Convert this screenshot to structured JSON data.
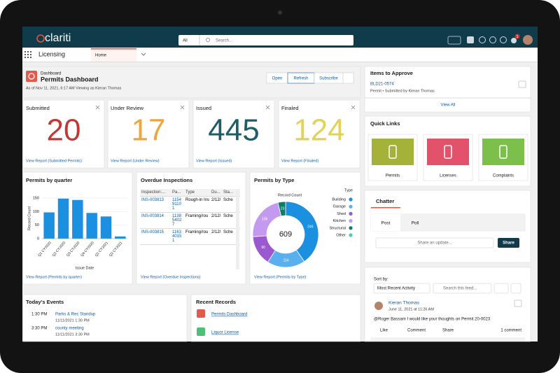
{
  "header": {
    "logo": "clariti",
    "search_scope": "All",
    "search_placeholder": "Search...",
    "notification_badge": "1"
  },
  "nav": {
    "app": "Licensing",
    "tab": "Home"
  },
  "dashboard": {
    "label": "Dashboard",
    "title": "Permits Dashboard",
    "as_of": "As of Nov 11, 2021, 6:17 AM Viewing as Kieran Thomas",
    "buttons": [
      "Open",
      "Refresh",
      "Subscribe"
    ]
  },
  "metrics": [
    {
      "title": "Submitted",
      "value": 20,
      "color": "#c23934",
      "link": "View Report (Submitted Permits)"
    },
    {
      "title": "Under Review",
      "value": 17,
      "color": "#f0a53a",
      "link": "View Report (Under Review)"
    },
    {
      "title": "Issued",
      "value": 445,
      "color": "#1d5c68",
      "link": "View Report (Issued)"
    },
    {
      "title": "Finaled",
      "value": 124,
      "color": "#e2d25a",
      "link": "View Report (Finaled)"
    }
  ],
  "chart_data": [
    {
      "type": "bar",
      "title": "Permits by quarter",
      "x_label": "Issue Date",
      "y_label": "Record Count",
      "categories": [
        "Q1 CY2020",
        "Q2 CY2020",
        "Q3 CY2020",
        "Q4 CY2020",
        "Q1 CY2021",
        "Q2 CY2021"
      ],
      "values": [
        97,
        148,
        143,
        95,
        82,
        8
      ],
      "color": "#1b8fe0",
      "ylim": [
        0,
        150
      ],
      "yticks": [
        0,
        50,
        100,
        150
      ],
      "grid": true,
      "link": "View Report (Permits by quarter)"
    },
    {
      "type": "pie",
      "title": "Permits by Type",
      "value_label": "Record Count",
      "legend_title": "Type",
      "total": 609,
      "categories": [
        "Building",
        "Garage",
        "Shed",
        "Kitchen",
        "Structural",
        "Other"
      ],
      "values": [
        246,
        114,
        90,
        136,
        23,
        0
      ],
      "colors": [
        "#1b8fe0",
        "#5ab0ef",
        "#9b59d0",
        "#c39af0",
        "#0b7d68",
        "#57c5b6"
      ],
      "link": "View Report (Permits by Type)"
    }
  ],
  "inspections": {
    "title": "Overdue Inspections",
    "columns": [
      "Inspection:...",
      "Pa...",
      "Type",
      "Du...",
      "Sta..."
    ],
    "rows": [
      [
        "INS-003813",
        "115491101",
        "Rough-in Ins",
        "2/12/",
        "Sche"
      ],
      [
        "INS-003814",
        "113854027",
        "Framing/rou",
        "2/12/",
        "Sche"
      ],
      [
        "INS-003815",
        "116340151",
        "Framing/rou",
        "2/12/",
        "Sche"
      ]
    ],
    "link": "View Report (Overdue Inspections)"
  },
  "approvals": {
    "title": "Items to Approve",
    "item": "BLD21-0574",
    "detail": "Permit • Submitted by Kieran Thomas",
    "link": "View All"
  },
  "quick_links": {
    "title": "Quick Links",
    "items": [
      "Permits",
      "Licenses",
      "Complaints"
    ]
  },
  "chatter": {
    "title": "Chatter",
    "tabs": [
      "Post",
      "Poll"
    ],
    "placeholder": "Share an update...",
    "button": "Share"
  },
  "feed": {
    "sort_label": "Sort by:",
    "sort": "Most Recent Activity",
    "search": "Search this feed...",
    "author": "Kieran Thomas",
    "date": "June 11, 2021 at 11:26 AM",
    "text": "@Roger Bassam I would like your thoughts on Permit 20-0023",
    "actions": [
      "Like",
      "Comment",
      "Share"
    ],
    "comments": "1 comment"
  },
  "events": {
    "title": "Today's Events",
    "items": [
      {
        "time": "1:30 PM",
        "name": "Parks & Rec Standup",
        "date": "11/11/2021 1:30 PM"
      },
      {
        "time": "3:30 PM",
        "name": "county meeting",
        "date": "11/11/2021 3:30 PM"
      }
    ]
  },
  "recent": {
    "title": "Recent Records",
    "items": [
      "Permits Dashboard",
      "Liquor License"
    ]
  }
}
